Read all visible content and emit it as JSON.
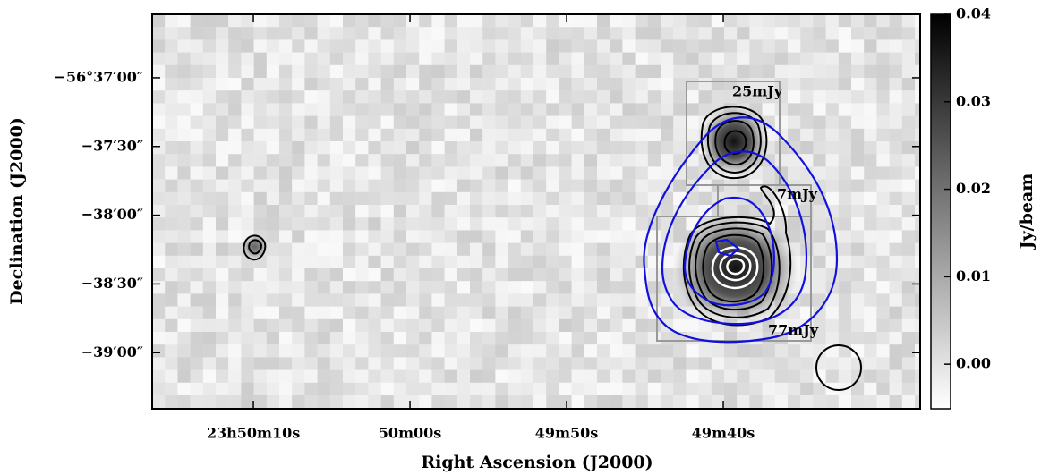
{
  "chart_data": {
    "type": "image",
    "xlabel": "Right Ascension (J2000)",
    "ylabel": "Declination (J2000)",
    "xlim": [
      85816.46,
      85767.43
    ],
    "xticks": [
      {
        "value": 85810,
        "label": "23h50m10s"
      },
      {
        "value": 85800,
        "label": "50m00s"
      },
      {
        "value": 85790,
        "label": "49m50s"
      },
      {
        "value": 85780,
        "label": "49m40s"
      }
    ],
    "ylim": [
      -203964.5,
      -203792.3
    ],
    "yticks": [
      {
        "value": -203820,
        "label": "−56°37′00″"
      },
      {
        "value": -203850,
        "label": "−37′30″"
      },
      {
        "value": -203880,
        "label": "−38′00″"
      },
      {
        "value": -203910,
        "label": "−38′30″"
      },
      {
        "value": -203940,
        "label": "−39′00″"
      }
    ],
    "colorbar": {
      "label": "Jy/beam",
      "lim": [
        -0.0051,
        0.04
      ],
      "ticks": [
        {
          "value": 0,
          "label": "0.00"
        },
        0.01,
        0.02,
        0.03,
        0.04
      ]
    },
    "annotations": [
      "25mJy",
      "7mJy",
      "77mJy"
    ]
  }
}
